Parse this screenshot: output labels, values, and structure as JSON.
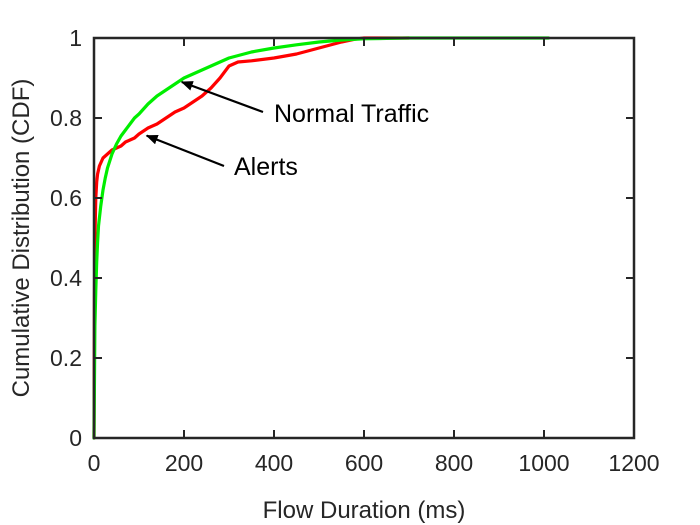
{
  "chart_data": {
    "type": "line",
    "title": "",
    "xlabel": "Flow Duration (ms)",
    "ylabel": "Cumulative Distribution (CDF)",
    "xlim": [
      0,
      1200
    ],
    "ylim": [
      0,
      1
    ],
    "xticks": [
      0,
      200,
      400,
      600,
      800,
      1000,
      1200
    ],
    "yticks": [
      0,
      0.2,
      0.4,
      0.6,
      0.8,
      1
    ],
    "xtick_labels": [
      "0",
      "200",
      "400",
      "600",
      "800",
      "1000",
      "1200"
    ],
    "ytick_labels": [
      "0",
      "0.2",
      "0.4",
      "0.6",
      "0.8",
      "1"
    ],
    "grid": false,
    "series": [
      {
        "color": "#ff0000",
        "x": [
          0,
          1,
          2,
          4,
          6,
          8,
          12,
          16,
          20,
          25,
          30,
          40,
          50,
          60,
          70,
          80,
          90,
          100,
          120,
          140,
          160,
          180,
          200,
          220,
          240,
          260,
          280,
          300,
          320,
          350,
          400,
          450,
          500,
          550,
          580,
          600,
          700
        ],
        "y": [
          0,
          0.35,
          0.5,
          0.6,
          0.64,
          0.66,
          0.68,
          0.69,
          0.7,
          0.705,
          0.71,
          0.72,
          0.725,
          0.73,
          0.74,
          0.745,
          0.75,
          0.76,
          0.775,
          0.785,
          0.8,
          0.815,
          0.825,
          0.84,
          0.855,
          0.875,
          0.9,
          0.93,
          0.94,
          0.943,
          0.95,
          0.96,
          0.975,
          0.99,
          0.997,
          1,
          1
        ]
      },
      {
        "color": "#00ee00",
        "x": [
          0,
          2,
          4,
          6,
          8,
          10,
          15,
          20,
          25,
          30,
          40,
          50,
          60,
          70,
          80,
          90,
          100,
          120,
          140,
          160,
          180,
          200,
          220,
          240,
          260,
          280,
          300,
          350,
          400,
          450,
          500,
          550,
          600,
          650,
          700,
          1010
        ],
        "y": [
          0,
          0.28,
          0.37,
          0.44,
          0.49,
          0.53,
          0.58,
          0.62,
          0.65,
          0.675,
          0.71,
          0.735,
          0.755,
          0.77,
          0.785,
          0.8,
          0.81,
          0.835,
          0.855,
          0.87,
          0.885,
          0.9,
          0.91,
          0.92,
          0.93,
          0.94,
          0.95,
          0.965,
          0.975,
          0.983,
          0.99,
          0.995,
          0.998,
          0.999,
          1,
          1
        ]
      }
    ],
    "annotations": [
      {
        "text": "Normal Traffic",
        "arrow_to": [
          195,
          0.89
        ]
      },
      {
        "text": "Alerts",
        "arrow_to": [
          117,
          0.756
        ]
      }
    ]
  }
}
